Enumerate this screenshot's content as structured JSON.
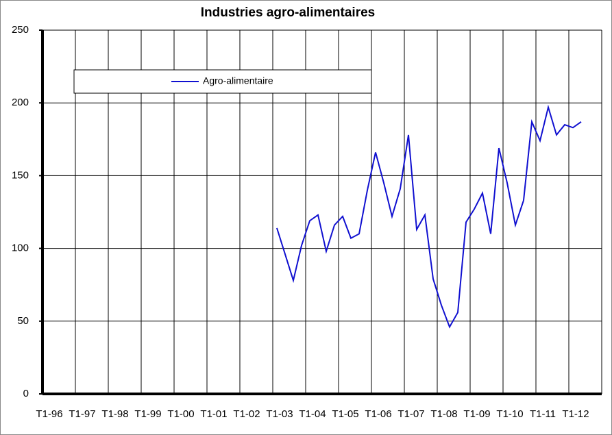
{
  "chart_data": {
    "type": "line",
    "title": "Industries agro-alimentaires",
    "categories": [
      "T1-96",
      null,
      null,
      null,
      "T1-97",
      null,
      null,
      null,
      "T1-98",
      null,
      null,
      null,
      "T1-99",
      null,
      null,
      null,
      "T1-00",
      null,
      null,
      null,
      "T1-01",
      null,
      null,
      null,
      "T1-02",
      null,
      null,
      null,
      "T1-03",
      null,
      null,
      null,
      "T1-04",
      null,
      null,
      null,
      "T1-05",
      null,
      null,
      null,
      "T1-06",
      null,
      null,
      null,
      "T1-07",
      null,
      null,
      null,
      "T1-08",
      null,
      null,
      null,
      "T1-09",
      null,
      null,
      null,
      "T1-10",
      null,
      null,
      null,
      "T1-11",
      null,
      null,
      null,
      "T1-12",
      null,
      null,
      null
    ],
    "series": [
      {
        "name": "Agro-alimentaire",
        "color": "#1010d0",
        "values": [
          null,
          null,
          null,
          null,
          null,
          null,
          null,
          null,
          null,
          null,
          null,
          null,
          null,
          null,
          null,
          null,
          null,
          null,
          null,
          null,
          null,
          null,
          null,
          null,
          null,
          null,
          null,
          null,
          114,
          96,
          78,
          102,
          119,
          123,
          98,
          116,
          122,
          107,
          110,
          140,
          166,
          145,
          122,
          141,
          178,
          113,
          123,
          79,
          61,
          46,
          56,
          118,
          127,
          138,
          110,
          169,
          145,
          116,
          133,
          187,
          174,
          197,
          178,
          185,
          183,
          187,
          null,
          null
        ]
      }
    ],
    "ylim": [
      0,
      250
    ],
    "yticks": [
      0,
      50,
      100,
      150,
      200,
      250
    ],
    "grid": true
  }
}
